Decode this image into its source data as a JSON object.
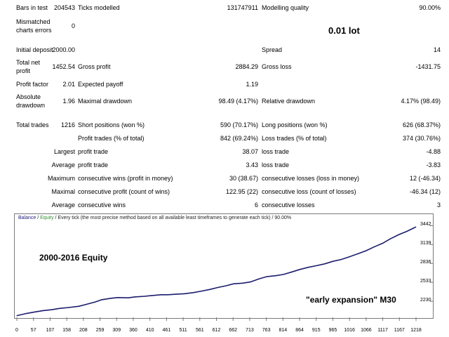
{
  "report": {
    "bars_label": "Bars in test",
    "bars_value": "204543",
    "ticks_label": "Ticks modelled",
    "ticks_value": "131747911",
    "quality_label": "Modelling quality",
    "quality_value": "90.00%",
    "mismatch_label1": "Mismatched",
    "mismatch_label2": "charts errors",
    "mismatch_value": "0",
    "lot": "0.01 lot",
    "deposit_label": "Initial deposit",
    "deposit_value": "2000.00",
    "spread_label": "Spread",
    "spread_value": "14",
    "net_label1": "Total net",
    "net_label2": "profit",
    "net_value": "1452.54",
    "gprofit_label": "Gross profit",
    "gprofit_value": "2884.29",
    "gloss_label": "Gross loss",
    "gloss_value": "-1431.75",
    "pf_label": "Profit factor",
    "pf_value": "2.01",
    "ep_label": "Expected payoff",
    "ep_value": "1.19",
    "absdd_label1": "Absolute",
    "absdd_label2": "drawdown",
    "absdd_value": "1.96",
    "maxdd_label": "Maximal drawdown",
    "maxdd_value": "98.49 (4.17%)",
    "reldd_label": "Relative drawdown",
    "reldd_value": "4.17% (98.49)",
    "trades_label": "Total trades",
    "trades_value": "1216",
    "short_label": "Short positions (won %)",
    "short_value": "590 (70.17%)",
    "long_label": "Long positions (won %)",
    "long_value": "626 (68.37%)",
    "ptrades_label": "Profit trades (% of total)",
    "ptrades_value": "842 (69.24%)",
    "ltrades_label": "Loss trades (% of total)",
    "ltrades_value": "374 (30.76%)",
    "largest_label": "Largest",
    "largest_profit_label": "profit trade",
    "largest_profit_value": "38.07",
    "largest_loss_label": "loss trade",
    "largest_loss_value": "-4.88",
    "average_label": "Average",
    "avg_profit_label": "profit trade",
    "avg_profit_value": "3.43",
    "avg_loss_label": "loss trade",
    "avg_loss_value": "-3.83",
    "maximum_label": "Maximum",
    "max_wins_label": "consecutive wins (profit in money)",
    "max_wins_value": "30 (38.67)",
    "max_losses_label": "consecutive losses (loss in money)",
    "max_losses_value": "12 (-46.34)",
    "maximal_label": "Maximal",
    "maximal_profit_label": "consecutive profit (count of wins)",
    "maximal_profit_value": "122.95 (22)",
    "maximal_loss_label": "consecutive loss (count of losses)",
    "maximal_loss_value": "-46.34 (12)",
    "average2_label": "Average",
    "avg_wins_label": "consecutive wins",
    "avg_wins_value": "6",
    "avg_losses_label": "consecutive losses",
    "avg_losses_value": "3"
  },
  "chart_header": {
    "balance": "Balance",
    "sep1": " / ",
    "equity": "Equity",
    "rest": " / Every tick (the most precise method based on all available least timeframes to generate each tick) / 90.00%"
  },
  "annotations": {
    "equity_title": "2000-2016 Equity",
    "strategy": "\"early expansion\" M30"
  },
  "colors": {
    "line": "#1c1c6e",
    "balance": "#1c1c7a",
    "equity": "#2f8f2f"
  },
  "chart_data": {
    "type": "line",
    "x_ticks": [
      "0",
      "57",
      "107",
      "158",
      "208",
      "259",
      "309",
      "360",
      "410",
      "461",
      "511",
      "561",
      "612",
      "662",
      "713",
      "763",
      "814",
      "864",
      "915",
      "965",
      "1016",
      "1066",
      "1117",
      "1167",
      "1218"
    ],
    "y_ticks": [
      "3442",
      "3139",
      "2836",
      "2533",
      "2230"
    ],
    "ylim": [
      1995,
      3480
    ],
    "xlim": [
      0,
      1225
    ],
    "series": [
      {
        "x": [
          0,
          30,
          57,
          80,
          107,
          130,
          158,
          190,
          208,
          240,
          259,
          290,
          309,
          340,
          360,
          390,
          410,
          440,
          461,
          490,
          511,
          540,
          561,
          590,
          612,
          640,
          662,
          690,
          713,
          740,
          763,
          790,
          814,
          840,
          864,
          890,
          915,
          940,
          965,
          990,
          1016,
          1040,
          1066,
          1090,
          1117,
          1140,
          1167,
          1190,
          1210,
          1218
        ],
        "y": [
          2000,
          2035,
          2060,
          2080,
          2095,
          2115,
          2130,
          2150,
          2175,
          2220,
          2255,
          2280,
          2290,
          2285,
          2300,
          2310,
          2320,
          2335,
          2335,
          2345,
          2350,
          2370,
          2390,
          2420,
          2450,
          2480,
          2510,
          2520,
          2540,
          2590,
          2625,
          2640,
          2660,
          2700,
          2740,
          2775,
          2800,
          2830,
          2870,
          2900,
          2945,
          2990,
          3040,
          3100,
          3160,
          3230,
          3300,
          3350,
          3400,
          3420
        ]
      }
    ]
  }
}
